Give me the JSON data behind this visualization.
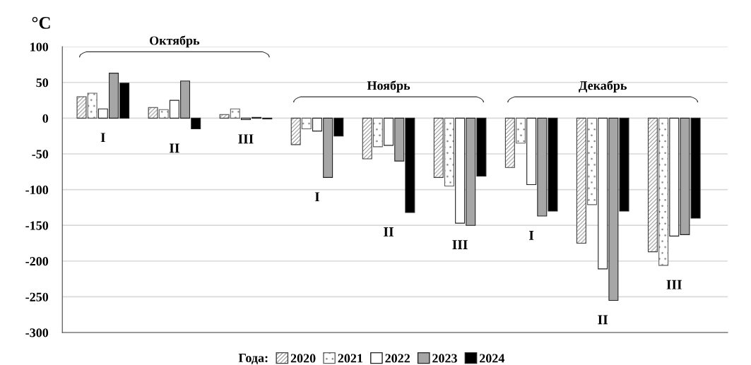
{
  "chart_data": {
    "type": "bar",
    "ylabel": "°C",
    "categories": [
      "I",
      "II",
      "III",
      "I",
      "II",
      "III",
      "I",
      "II",
      "III"
    ],
    "series": [
      {
        "name": "2020",
        "color": "#404040",
        "values": [
          30,
          15,
          5,
          -37,
          -57,
          -83,
          -69,
          -175,
          -187
        ]
      },
      {
        "name": "2021",
        "color": "#606060",
        "values": [
          35,
          12,
          13,
          -15,
          -40,
          -95,
          -35,
          -121,
          -206
        ]
      },
      {
        "name": "2022",
        "color": "#ffffff",
        "values": [
          13,
          25,
          -2,
          -18,
          -38,
          -147,
          -93,
          -211,
          -165
        ]
      },
      {
        "name": "2023",
        "color": "#a6a6a6",
        "values": [
          63,
          52,
          1,
          -83,
          -60,
          -150,
          -137,
          -255,
          -163
        ]
      },
      {
        "name": "2024",
        "color": "#000000",
        "values": [
          49,
          -15,
          -1,
          -25,
          -132,
          -81,
          -130,
          -130,
          -140
        ]
      }
    ],
    "legend_title": "Года:",
    "annotations": [
      "Октябрь",
      "Ноябрь",
      "Декабрь"
    ],
    "ylim": [
      -300,
      100
    ],
    "yticks": [
      -300,
      -250,
      -200,
      -150,
      -100,
      -50,
      0,
      50,
      100
    ],
    "grid": "y",
    "legend": "bottom"
  }
}
